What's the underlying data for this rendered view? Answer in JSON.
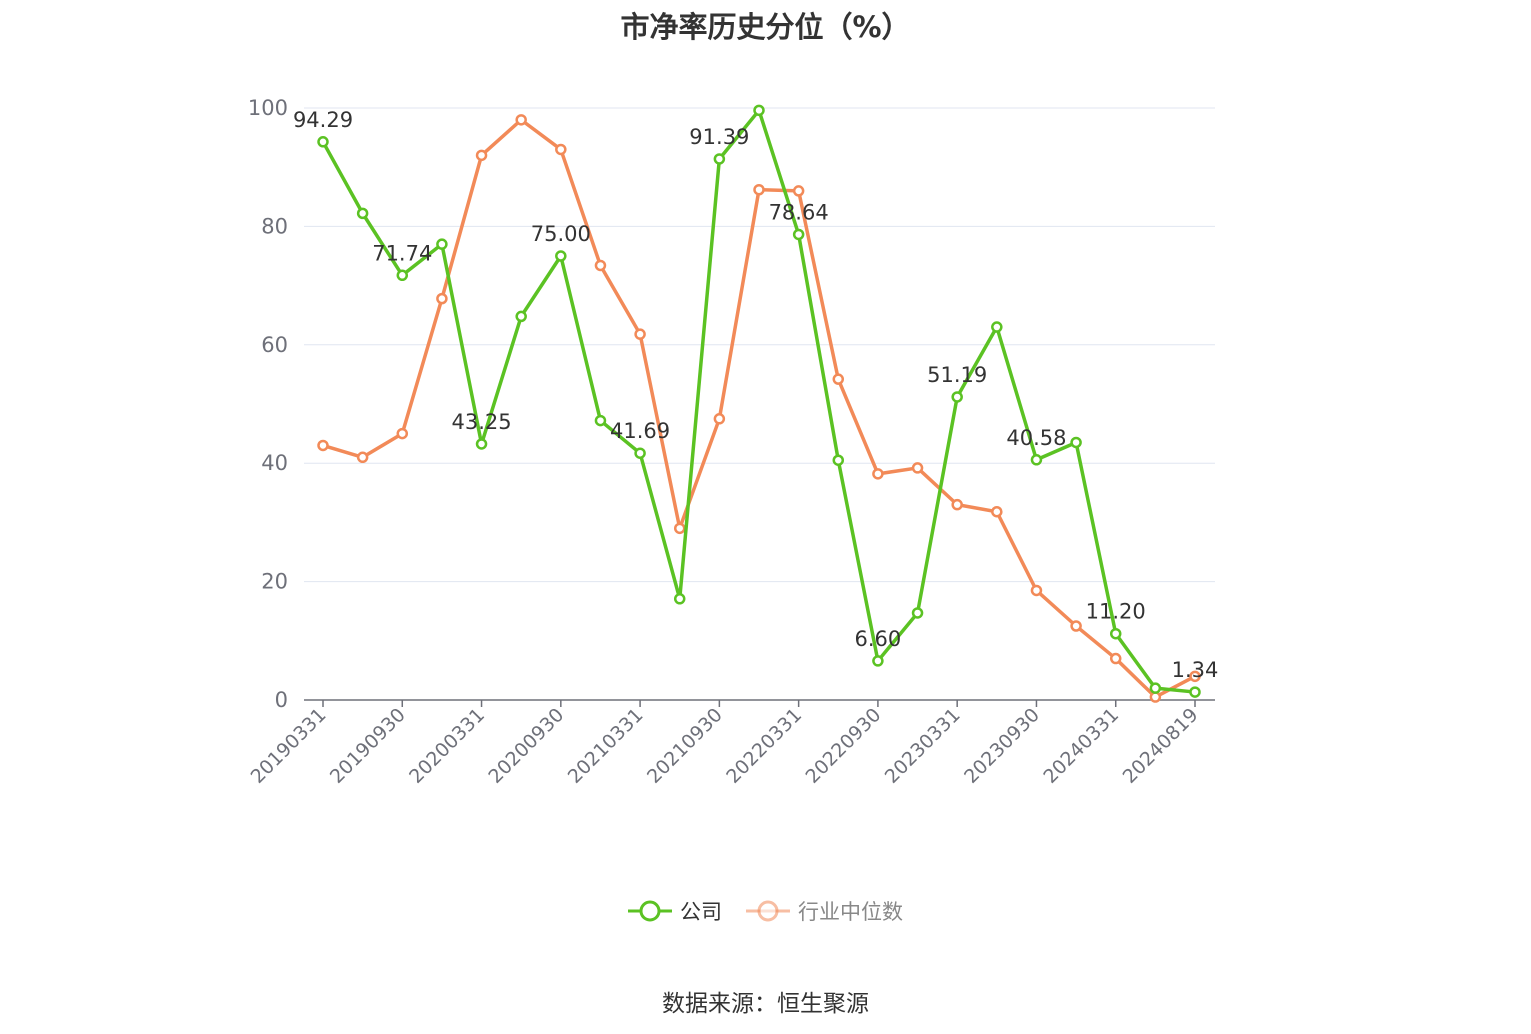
{
  "chart_data": {
    "type": "line",
    "title": "市净率历史分位（%）",
    "source": "数据来源：恒生聚源",
    "ylim": [
      0,
      100
    ],
    "yticks": [
      0,
      20,
      40,
      60,
      80,
      100
    ],
    "grid": true,
    "legend_position": "bottom",
    "x": [
      "20190331",
      "20190630",
      "20190930",
      "20191231",
      "20200331",
      "20200630",
      "20200930",
      "20201231",
      "20210331",
      "20210630",
      "20210930",
      "20211231",
      "20220331",
      "20220630",
      "20220930",
      "20221231",
      "20230331",
      "20230630",
      "20230930",
      "20231231",
      "20240331",
      "20240630",
      "20240819"
    ],
    "x_tick_labels": [
      "20190331",
      "20190930",
      "20200331",
      "20200930",
      "20210331",
      "20210930",
      "20220331",
      "20220930",
      "20230331",
      "20230930",
      "20240331",
      "20240819"
    ],
    "series": [
      {
        "name": "公司",
        "color": "#5BC223",
        "values": [
          94.29,
          82.2,
          71.74,
          77.0,
          43.25,
          64.8,
          75.0,
          47.2,
          41.69,
          17.1,
          91.39,
          99.6,
          78.64,
          40.5,
          6.6,
          14.7,
          51.19,
          63.0,
          40.58,
          43.5,
          11.2,
          2.0,
          1.34
        ],
        "labels": [
          "94.29",
          "",
          "71.74",
          "",
          "43.25",
          "",
          "75.00",
          "",
          "41.69",
          "",
          "91.39",
          "",
          "78.64",
          "",
          "6.60",
          "",
          "51.19",
          "",
          "40.58",
          "",
          "11.20",
          "",
          "1.34"
        ]
      },
      {
        "name": "行业中位数",
        "color": "#F28A58",
        "values": [
          43.0,
          41.0,
          45.0,
          67.8,
          92.0,
          98.0,
          93.0,
          73.4,
          61.8,
          29.0,
          47.5,
          86.2,
          86.0,
          54.2,
          38.2,
          39.2,
          33.0,
          31.8,
          18.5,
          12.5,
          7.0,
          0.5,
          4.0
        ]
      }
    ]
  }
}
